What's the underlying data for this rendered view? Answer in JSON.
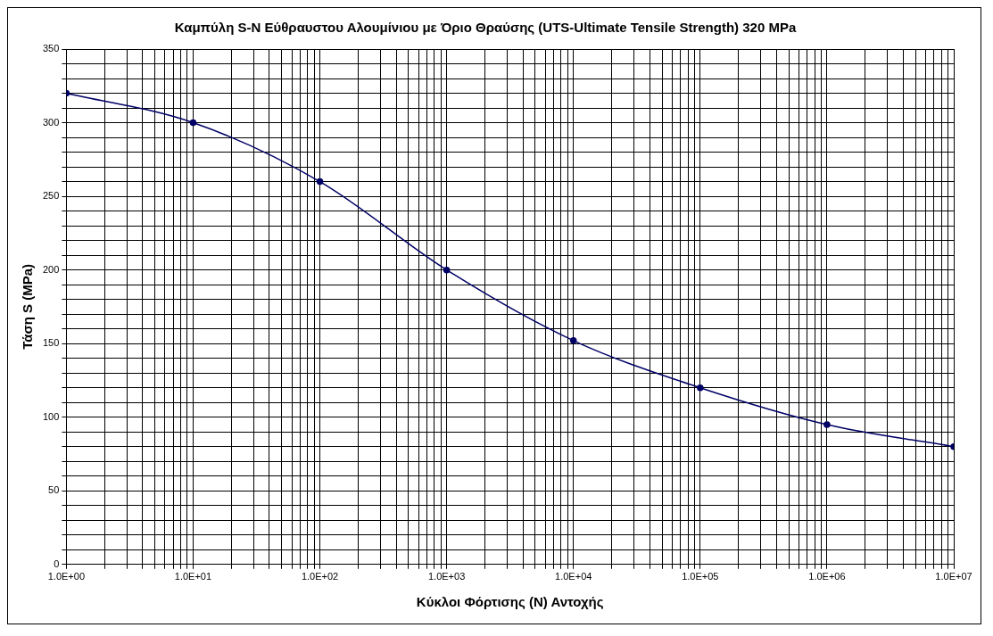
{
  "chart_data": {
    "type": "line",
    "title": "Καμπύλη S-N Εύθραυστου Αλουμίνιου με Όριο Θραύσης (UTS-Ultimate Tensile Strength) 320 MPa",
    "xlabel": "Κύκλοι Φόρτισης (Ν) Αντοχής",
    "ylabel": "Τάση S (MPa)",
    "x": [
      1,
      10,
      100,
      1000,
      10000,
      100000,
      1000000,
      10000000
    ],
    "series": [
      {
        "color": "#000066",
        "values": [
          320,
          300,
          260,
          200,
          152,
          120,
          95,
          80
        ]
      }
    ],
    "log": "x",
    "xlim": [
      1,
      10000000
    ],
    "ylim": [
      0,
      350
    ],
    "xticks": [
      {
        "value": 1,
        "label": "1.0E+00"
      },
      {
        "value": 2,
        "label": null
      },
      {
        "value": 3,
        "label": null
      },
      {
        "value": 4,
        "label": null
      },
      {
        "value": 5,
        "label": null
      },
      {
        "value": 6,
        "label": null
      },
      {
        "value": 7,
        "label": null
      },
      {
        "value": 8,
        "label": null
      },
      {
        "value": 9,
        "label": null
      },
      {
        "value": 10,
        "label": "1.0E+01"
      },
      {
        "value": 20,
        "label": null
      },
      {
        "value": 30,
        "label": null
      },
      {
        "value": 40,
        "label": null
      },
      {
        "value": 50,
        "label": null
      },
      {
        "value": 60,
        "label": null
      },
      {
        "value": 70,
        "label": null
      },
      {
        "value": 80,
        "label": null
      },
      {
        "value": 90,
        "label": null
      },
      {
        "value": 100,
        "label": "1.0E+02"
      },
      {
        "value": 200,
        "label": null
      },
      {
        "value": 300,
        "label": null
      },
      {
        "value": 400,
        "label": null
      },
      {
        "value": 500,
        "label": null
      },
      {
        "value": 600,
        "label": null
      },
      {
        "value": 700,
        "label": null
      },
      {
        "value": 800,
        "label": null
      },
      {
        "value": 900,
        "label": null
      },
      {
        "value": 1000,
        "label": "1.0E+03"
      },
      {
        "value": 2000,
        "label": null
      },
      {
        "value": 3000,
        "label": null
      },
      {
        "value": 4000,
        "label": null
      },
      {
        "value": 5000,
        "label": null
      },
      {
        "value": 6000,
        "label": null
      },
      {
        "value": 7000,
        "label": null
      },
      {
        "value": 8000,
        "label": null
      },
      {
        "value": 9000,
        "label": null
      },
      {
        "value": 10000,
        "label": "1.0E+04"
      },
      {
        "value": 20000,
        "label": null
      },
      {
        "value": 30000,
        "label": null
      },
      {
        "value": 40000,
        "label": null
      },
      {
        "value": 50000,
        "label": null
      },
      {
        "value": 60000,
        "label": null
      },
      {
        "value": 70000,
        "label": null
      },
      {
        "value": 80000,
        "label": null
      },
      {
        "value": 90000,
        "label": null
      },
      {
        "value": 100000,
        "label": "1.0E+05"
      },
      {
        "value": 200000,
        "label": null
      },
      {
        "value": 300000,
        "label": null
      },
      {
        "value": 400000,
        "label": null
      },
      {
        "value": 500000,
        "label": null
      },
      {
        "value": 600000,
        "label": null
      },
      {
        "value": 700000,
        "label": null
      },
      {
        "value": 800000,
        "label": null
      },
      {
        "value": 900000,
        "label": null
      },
      {
        "value": 1000000,
        "label": "1.0E+06"
      },
      {
        "value": 2000000,
        "label": null
      },
      {
        "value": 3000000,
        "label": null
      },
      {
        "value": 4000000,
        "label": null
      },
      {
        "value": 5000000,
        "label": null
      },
      {
        "value": 6000000,
        "label": null
      },
      {
        "value": 7000000,
        "label": null
      },
      {
        "value": 8000000,
        "label": null
      },
      {
        "value": 9000000,
        "label": null
      },
      {
        "value": 10000000,
        "label": "1.0E+07"
      }
    ],
    "yticks": [
      0,
      {
        "value": 10,
        "label": null
      },
      {
        "value": 20,
        "label": null
      },
      {
        "value": 30,
        "label": null
      },
      {
        "value": 40,
        "label": null
      },
      50,
      {
        "value": 60,
        "label": null
      },
      {
        "value": 70,
        "label": null
      },
      {
        "value": 80,
        "label": null
      },
      {
        "value": 90,
        "label": null
      },
      100,
      {
        "value": 110,
        "label": null
      },
      {
        "value": 120,
        "label": null
      },
      {
        "value": 130,
        "label": null
      },
      {
        "value": 140,
        "label": null
      },
      150,
      {
        "value": 160,
        "label": null
      },
      {
        "value": 170,
        "label": null
      },
      {
        "value": 180,
        "label": null
      },
      {
        "value": 190,
        "label": null
      },
      200,
      {
        "value": 210,
        "label": null
      },
      {
        "value": 220,
        "label": null
      },
      {
        "value": 230,
        "label": null
      },
      {
        "value": 240,
        "label": null
      },
      250,
      {
        "value": 260,
        "label": null
      },
      {
        "value": 270,
        "label": null
      },
      {
        "value": 280,
        "label": null
      },
      {
        "value": 290,
        "label": null
      },
      300,
      {
        "value": 310,
        "label": null
      },
      {
        "value": 320,
        "label": null
      },
      {
        "value": 330,
        "label": null
      },
      {
        "value": 340,
        "label": null
      },
      350
    ],
    "grid": true,
    "legend": false,
    "marker": "circle",
    "line_style": "solid"
  }
}
